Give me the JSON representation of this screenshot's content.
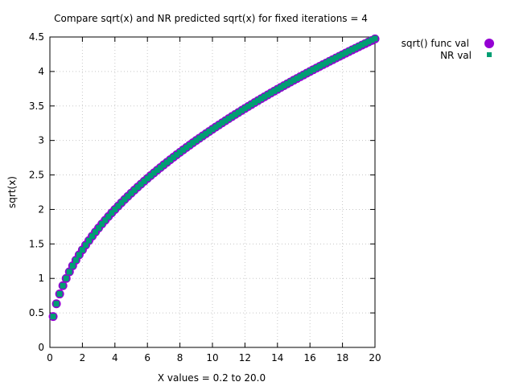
{
  "chart_data": {
    "type": "scatter",
    "title": "Compare sqrt(x) and NR predicted sqrt(x) for fixed iterations = 4",
    "xlabel": "X values = 0.2 to 20.0",
    "ylabel": "sqrt(x)",
    "xlim": [
      0,
      20
    ],
    "ylim": [
      0,
      4.5
    ],
    "xticks": [
      "0",
      "2",
      "4",
      "6",
      "8",
      "10",
      "12",
      "14",
      "16",
      "18",
      "20"
    ],
    "yticks": [
      "0",
      "0.5",
      "1",
      "1.5",
      "2",
      "2.5",
      "3",
      "3.5",
      "4",
      "4.5"
    ],
    "grid": true,
    "legend": "top-right-outside",
    "x_range": {
      "start": 0.2,
      "end": 20.0,
      "step": 0.2
    },
    "series": [
      {
        "name": "sqrt() func val",
        "marker": "circle",
        "color": "#9400d3"
      },
      {
        "name": "NR val",
        "marker": "square",
        "color": "#009e73"
      }
    ]
  }
}
